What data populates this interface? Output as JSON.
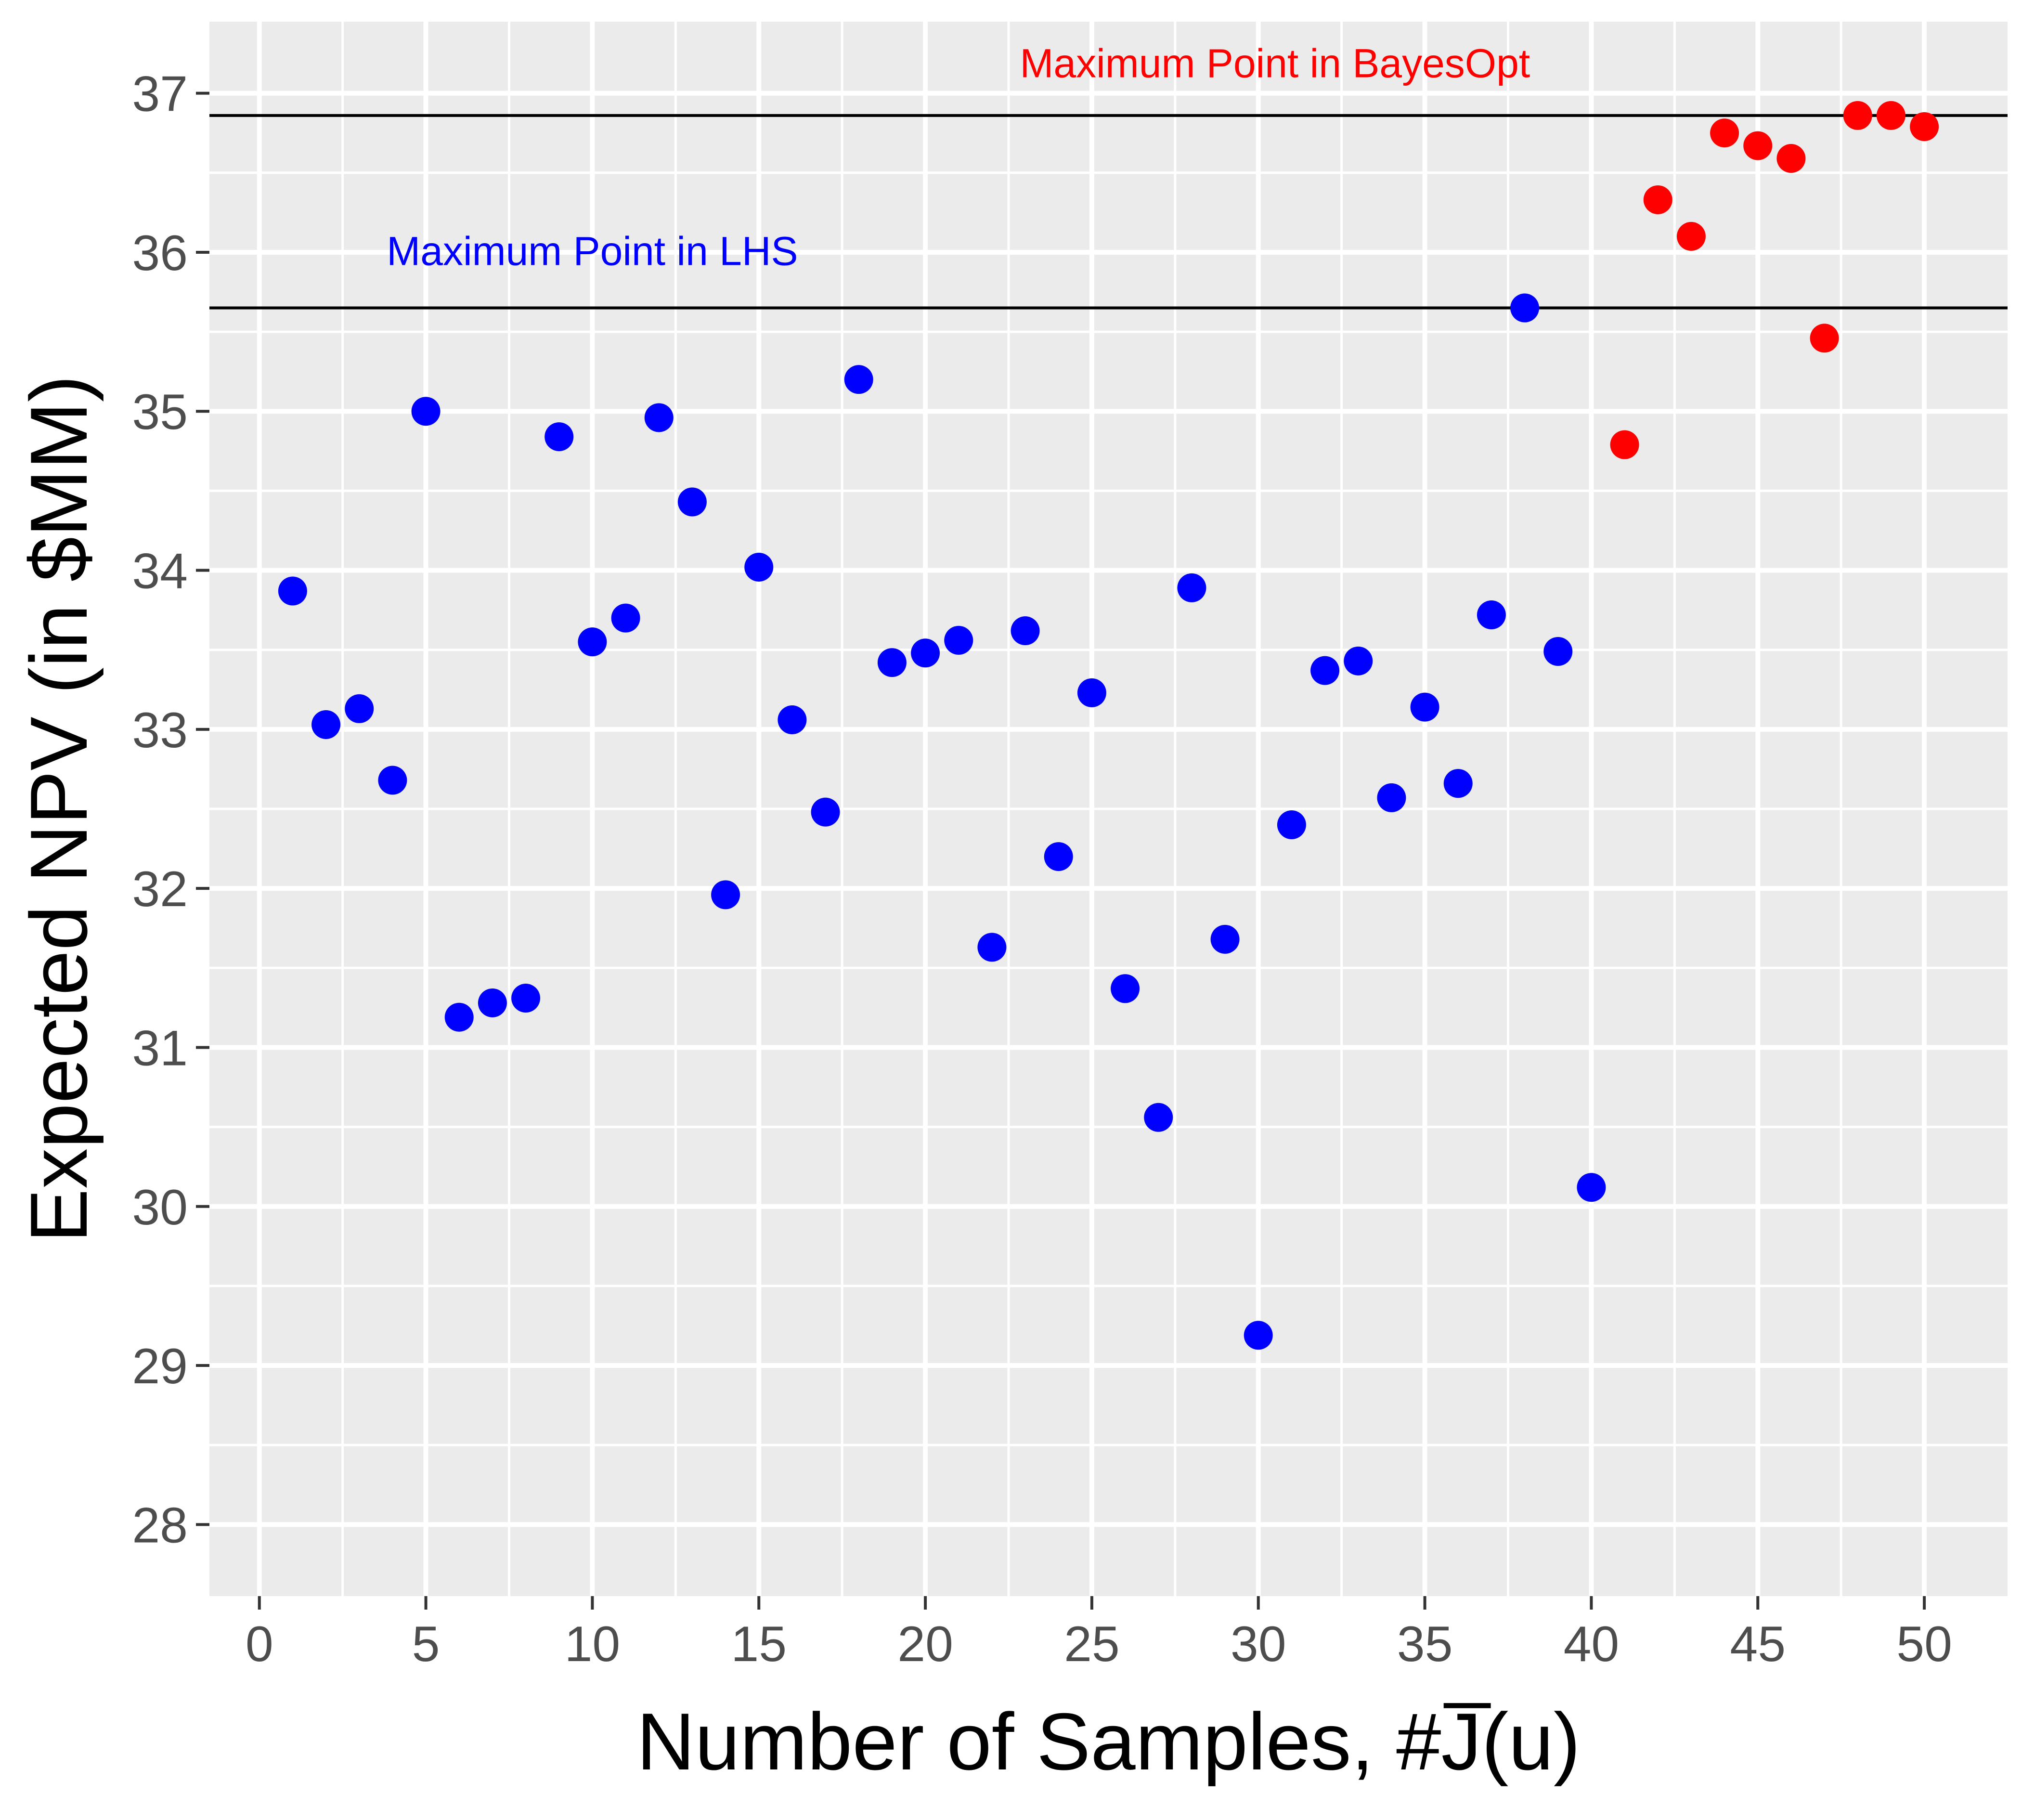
{
  "chart_data": {
    "type": "scatter",
    "xlabel": "Number of Samples, #J̅(u)",
    "ylabel": "Expected NPV (in $MM)",
    "xlim": [
      -1.5,
      52.5
    ],
    "ylim": [
      27.55,
      37.45
    ],
    "x_ticks": [
      0,
      5,
      10,
      15,
      20,
      25,
      30,
      35,
      40,
      45,
      50
    ],
    "y_ticks": [
      28,
      29,
      30,
      31,
      32,
      33,
      34,
      35,
      36,
      37
    ],
    "grid": true,
    "background": "#ebebeb",
    "series": [
      {
        "color": "#0000ff",
        "x": [
          1,
          2,
          3,
          4,
          5,
          6,
          7,
          8,
          9,
          10,
          11,
          12,
          13,
          14,
          15,
          16,
          17,
          18,
          19,
          20,
          21,
          22,
          23,
          24,
          25,
          26,
          27,
          28,
          29,
          30,
          31,
          32,
          33,
          34,
          35,
          36,
          37,
          38,
          39,
          40
        ],
        "y": [
          33.87,
          33.03,
          33.13,
          32.68,
          35.0,
          31.19,
          31.28,
          31.31,
          34.84,
          33.55,
          33.7,
          34.96,
          34.43,
          31.96,
          34.02,
          33.06,
          32.48,
          35.2,
          33.42,
          33.48,
          33.56,
          31.63,
          33.62,
          32.2,
          33.23,
          31.37,
          30.56,
          33.89,
          31.68,
          29.19,
          32.4,
          33.37,
          33.43,
          32.57,
          33.14,
          32.66,
          33.72,
          35.65,
          33.49,
          30.12
        ]
      },
      {
        "color": "#ff0000",
        "x": [
          41,
          42,
          43,
          44,
          45,
          46,
          47,
          48,
          49,
          50
        ],
        "y": [
          34.79,
          36.33,
          36.1,
          36.75,
          36.67,
          36.59,
          35.46,
          36.86,
          36.86,
          36.79
        ]
      }
    ],
    "reference_lines": [
      {
        "y": 36.86,
        "color": "#000000",
        "label": "Maximum Point in BayesOpt",
        "label_color": "#ff0000",
        "label_x": 30.5,
        "label_y": 37.1
      },
      {
        "y": 35.65,
        "color": "#000000",
        "label": "Maximum Point in LHS",
        "label_color": "#0000ff",
        "label_x": 10,
        "label_y": 35.92
      }
    ]
  }
}
